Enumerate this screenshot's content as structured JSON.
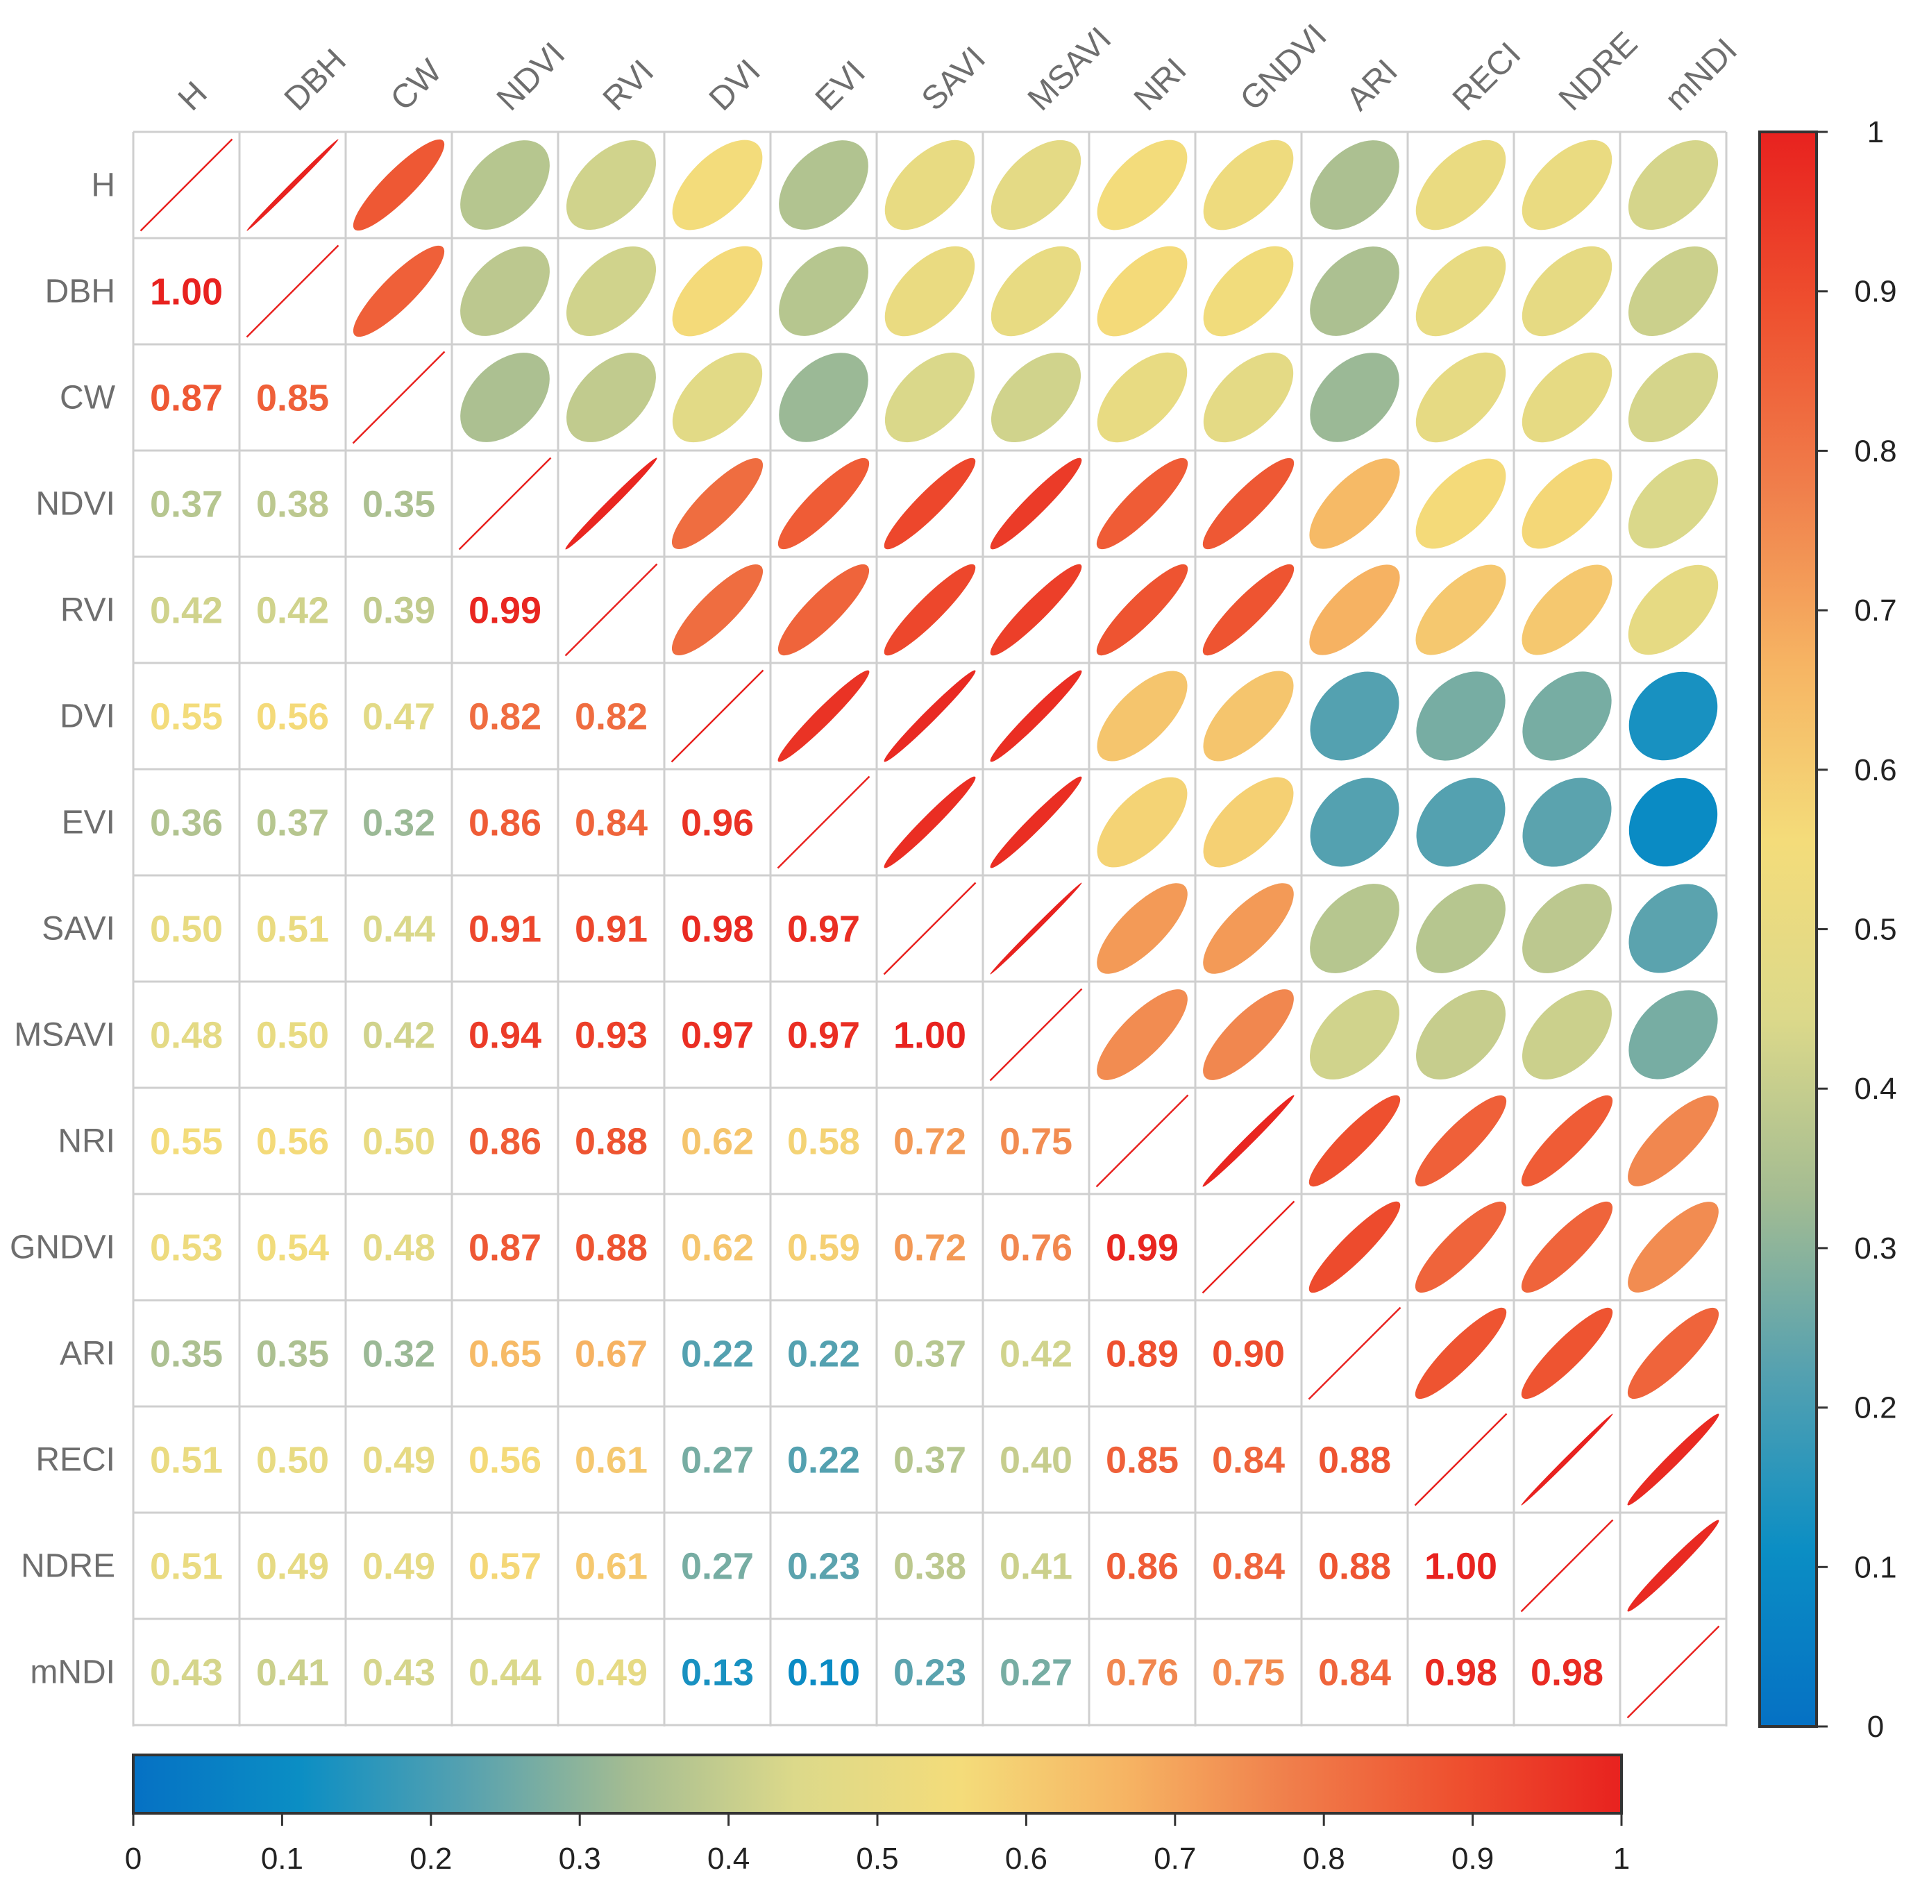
{
  "chart_data": {
    "type": "heatmap",
    "subtype": "correlation-matrix",
    "variables": [
      "H",
      "DBH",
      "CW",
      "NDVI",
      "RVI",
      "DVI",
      "EVI",
      "SAVI",
      "MSAVI",
      "NRI",
      "GNDVI",
      "ARI",
      "RECI",
      "NDRE",
      "mNDI"
    ],
    "lower_triangle_labels": [
      [],
      [
        "1.00"
      ],
      [
        "0.87",
        "0.85"
      ],
      [
        "0.37",
        "0.38",
        "0.35"
      ],
      [
        "0.42",
        "0.42",
        "0.39",
        "0.99"
      ],
      [
        "0.55",
        "0.56",
        "0.47",
        "0.82",
        "0.82"
      ],
      [
        "0.36",
        "0.37",
        "0.32",
        "0.86",
        "0.84",
        "0.96"
      ],
      [
        "0.50",
        "0.51",
        "0.44",
        "0.91",
        "0.91",
        "0.98",
        "0.97"
      ],
      [
        "0.48",
        "0.50",
        "0.42",
        "0.94",
        "0.93",
        "0.97",
        "0.97",
        "1.00"
      ],
      [
        "0.55",
        "0.56",
        "0.50",
        "0.86",
        "0.88",
        "0.62",
        "0.58",
        "0.72",
        "0.75"
      ],
      [
        "0.53",
        "0.54",
        "0.48",
        "0.87",
        "0.88",
        "0.62",
        "0.59",
        "0.72",
        "0.76",
        "0.99"
      ],
      [
        "0.35",
        "0.35",
        "0.32",
        "0.65",
        "0.67",
        "0.22",
        "0.22",
        "0.37",
        "0.42",
        "0.89",
        "0.90"
      ],
      [
        "0.51",
        "0.50",
        "0.49",
        "0.56",
        "0.61",
        "0.27",
        "0.22",
        "0.37",
        "0.40",
        "0.85",
        "0.84",
        "0.88"
      ],
      [
        "0.51",
        "0.49",
        "0.49",
        "0.57",
        "0.61",
        "0.27",
        "0.23",
        "0.38",
        "0.41",
        "0.86",
        "0.84",
        "0.88",
        "1.00"
      ],
      [
        "0.43",
        "0.41",
        "0.43",
        "0.44",
        "0.49",
        "0.13",
        "0.10",
        "0.23",
        "0.27",
        "0.76",
        "0.75",
        "0.84",
        "0.98",
        "0.98"
      ]
    ],
    "colorbar_right": {
      "ticks": [
        "1",
        "0.9",
        "0.8",
        "0.7",
        "0.6",
        "0.5",
        "0.4",
        "0.3",
        "0.2",
        "0.1",
        "0"
      ],
      "range": [
        0,
        1
      ]
    },
    "colorbar_bottom": {
      "ticks": [
        "0",
        "0.1",
        "0.2",
        "0.3",
        "0.4",
        "0.5",
        "0.6",
        "0.7",
        "0.8",
        "0.9",
        "1"
      ],
      "range": [
        0,
        1
      ]
    },
    "colorscale": [
      "#0571c4",
      "#0b8ec4",
      "#55a1b0",
      "#a4bc92",
      "#dcd98a",
      "#f4dc7a",
      "#f6b463",
      "#f07e4b",
      "#ee502f",
      "#e8221f"
    ]
  }
}
